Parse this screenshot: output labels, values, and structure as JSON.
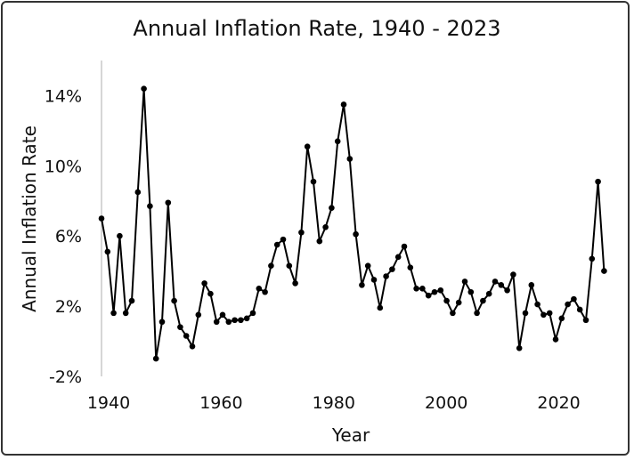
{
  "chart_data": {
    "type": "line",
    "title": "Annual Inflation Rate, 1940 - 2023",
    "xlabel": "Year",
    "ylabel": "Annual Inflation Rate",
    "xlim": [
      1940,
      2023
    ],
    "ylim": [
      -2,
      16
    ],
    "x_ticks": [
      "1940",
      "1960",
      "1980",
      "2000",
      "2020"
    ],
    "y_ticks": [
      "-2%",
      "2%",
      "6%",
      "10%",
      "14%"
    ],
    "grid": false,
    "legend": "none",
    "line_color": "#000000",
    "series": [
      {
        "x": [
          1940,
          1941,
          1942,
          1943,
          1944,
          1945,
          1946,
          1947,
          1948,
          1949,
          1950,
          1951,
          1952,
          1953,
          1954,
          1955,
          1956,
          1957,
          1958,
          1959,
          1960,
          1961,
          1962,
          1963,
          1964,
          1965,
          1966,
          1967,
          1968,
          1969,
          1970,
          1971,
          1972,
          1973,
          1974,
          1975,
          1976,
          1977,
          1978,
          1979,
          1980,
          1981,
          1982,
          1983,
          1984,
          1985,
          1986,
          1987,
          1988,
          1989,
          1990,
          1991,
          1992,
          1993,
          1994,
          1995,
          1996,
          1997,
          1998,
          1999,
          2000,
          2001,
          2002,
          2003,
          2004,
          2005,
          2006,
          2007,
          2008,
          2009,
          2010,
          2011,
          2012,
          2013,
          2014,
          2015,
          2016,
          2017,
          2018,
          2019,
          2020,
          2021,
          2022,
          2023
        ],
        "values": [
          7.0,
          5.1,
          1.6,
          6.0,
          1.6,
          2.3,
          8.5,
          14.4,
          7.7,
          -1.0,
          1.1,
          7.9,
          2.3,
          0.8,
          0.3,
          -0.3,
          1.5,
          3.3,
          2.7,
          1.1,
          1.5,
          1.1,
          1.2,
          1.2,
          1.3,
          1.6,
          3.0,
          2.8,
          4.3,
          5.5,
          5.8,
          4.3,
          3.3,
          6.2,
          11.1,
          9.1,
          5.7,
          6.5,
          7.6,
          11.4,
          13.5,
          10.4,
          6.1,
          3.2,
          4.3,
          3.5,
          1.9,
          3.7,
          4.1,
          4.8,
          5.4,
          4.2,
          3.0,
          3.0,
          2.6,
          2.8,
          2.9,
          2.3,
          1.6,
          2.2,
          3.4,
          2.8,
          1.6,
          2.3,
          2.7,
          3.4,
          3.2,
          2.9,
          3.8,
          -0.4,
          1.6,
          3.2,
          2.1,
          1.5,
          1.6,
          0.1,
          1.3,
          2.1,
          2.4,
          1.8,
          1.2,
          4.7,
          9.1,
          4.0
        ]
      }
    ]
  }
}
